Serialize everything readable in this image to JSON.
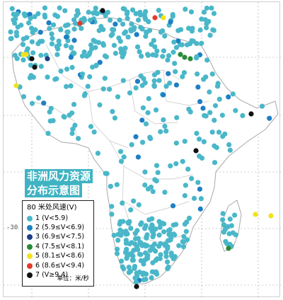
{
  "title": {
    "line1": "非洲风力资源",
    "line2": "分布示意图"
  },
  "legend": {
    "header": "80 米处风速(V)",
    "items": [
      {
        "label": "1  (V<5.9)",
        "color": "#4ab7c9"
      },
      {
        "label": "2  (5.9≤V<6.9)",
        "color": "#1e7fc4"
      },
      {
        "label": "3  (6.9≤V<7.5)",
        "color": "#1d3f86"
      },
      {
        "label": "4  (7.5≤V<8.1)",
        "color": "#2a8a3a"
      },
      {
        "label": "5  (8.1≤V<8.6)",
        "color": "#f2e21c"
      },
      {
        "label": "6  (8.6≤V<9.4)",
        "color": "#e23b2b"
      },
      {
        "label": "7  (V≥9.4)",
        "color": "#111111"
      }
    ],
    "unit": "单位：米/秒"
  },
  "axis": {
    "lat_tick": "-30"
  },
  "colors": {
    "coast": "#aaaaaa",
    "border": "#bdbdbd",
    "grid": "#9aa2a6"
  }
}
